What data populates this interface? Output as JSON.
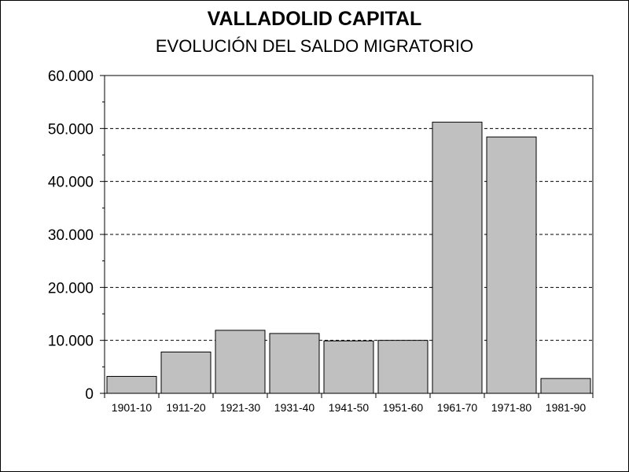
{
  "chart_data": {
    "type": "bar",
    "title": "VALLADOLID CAPITAL",
    "subtitle": "EVOLUCIÓN DEL SALDO MIGRATORIO",
    "categories": [
      "1901-10",
      "1911-20",
      "1921-30",
      "1931-40",
      "1941-50",
      "1951-60",
      "1961-70",
      "1971-80",
      "1981-90"
    ],
    "values": [
      3200,
      7800,
      11900,
      11300,
      9900,
      10000,
      51200,
      48400,
      2800
    ],
    "ylim": [
      0,
      60000
    ],
    "yticks": [
      0,
      10000,
      20000,
      30000,
      40000,
      50000,
      60000
    ],
    "ytick_labels": [
      "0",
      "10.000",
      "20.000",
      "30.000",
      "40.000",
      "50.000",
      "60.000"
    ],
    "xlabel": "",
    "ylabel": "",
    "grid": "horizontal dashed",
    "colors": {
      "bar_fill": "#c0c0c0",
      "bar_stroke": "#000000",
      "grid": "#000000"
    }
  }
}
